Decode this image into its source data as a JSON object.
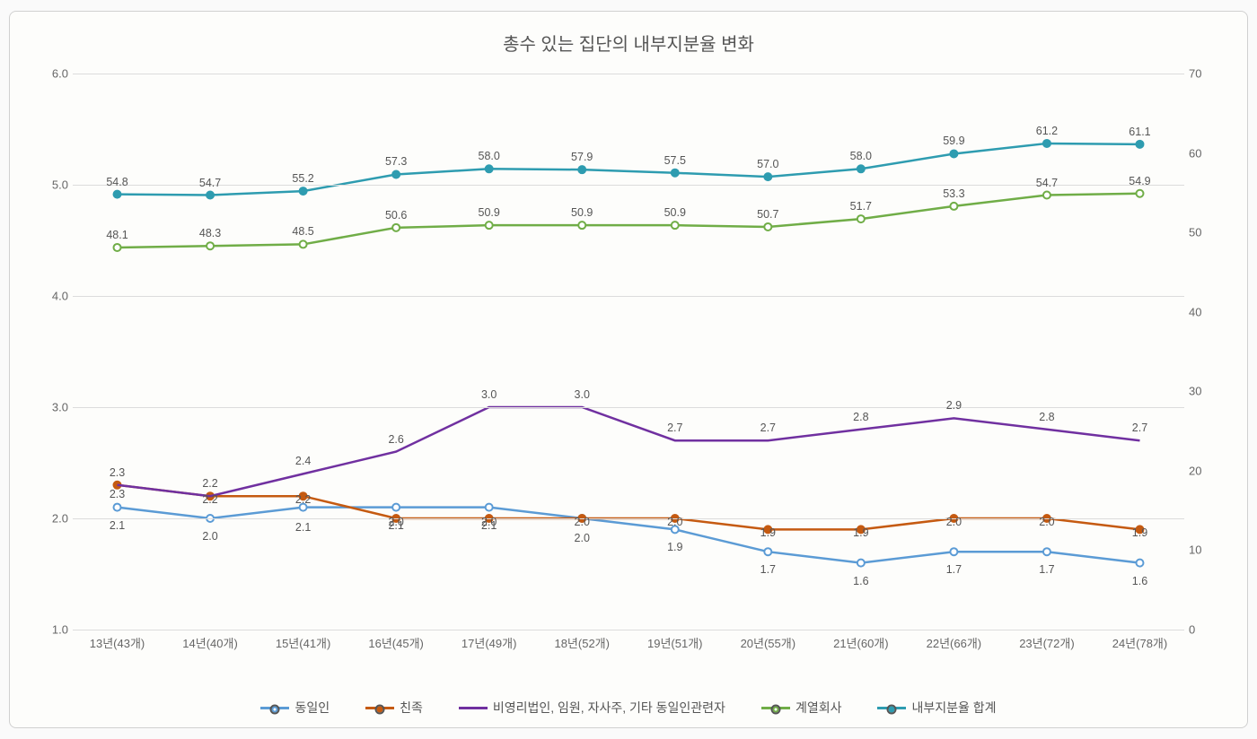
{
  "chart": {
    "title": "총수 있는 집단의 내부지분율 변화",
    "title_fontsize": 20,
    "background_color": "#fdfdfb",
    "grid_color": "#dcdcdc",
    "categories": [
      "13년(43개)",
      "14년(40개)",
      "15년(41개)",
      "16년(45개)",
      "17년(49개)",
      "18년(52개)",
      "19년(51개)",
      "20년(55개)",
      "21년(60개)",
      "22년(66개)",
      "23년(72개)",
      "24년(78개)"
    ],
    "left_axis": {
      "min": 1.0,
      "max": 6.0,
      "step": 1.0,
      "decimals": 1
    },
    "right_axis": {
      "min": 0,
      "max": 70,
      "step": 10,
      "decimals": 0
    },
    "label_fontsize": 12.5,
    "axis_fontsize": 13,
    "line_width": 2.5,
    "marker_radius": 4,
    "series": [
      {
        "key": "same_person",
        "label": "동일인",
        "axis": "left",
        "color": "#5b9bd5",
        "marker": true,
        "marker_fill": "#ffffff",
        "values": [
          2.1,
          2.0,
          2.1,
          2.1,
          2.1,
          2.0,
          1.9,
          1.7,
          1.6,
          1.7,
          1.7,
          1.6
        ],
        "label_offset": [
          20,
          20,
          22,
          20,
          20,
          22,
          20,
          20,
          20,
          20,
          20,
          20
        ]
      },
      {
        "key": "kin",
        "label": "친족",
        "axis": "left",
        "color": "#c55a11",
        "marker": true,
        "marker_fill": "#c55a11",
        "values": [
          2.3,
          2.2,
          2.2,
          2.0,
          2.0,
          2.0,
          2.0,
          1.9,
          1.9,
          2.0,
          2.0,
          1.9
        ],
        "label_offset": [
          10,
          4,
          4,
          4,
          4,
          4,
          4,
          4,
          4,
          4,
          4,
          4
        ]
      },
      {
        "key": "nonprofit_etc",
        "label": "비영리법인, 임원, 자사주, 기타 동일인관련자",
        "axis": "left",
        "color": "#7030a0",
        "marker": false,
        "values": [
          2.3,
          2.2,
          2.4,
          2.6,
          3.0,
          3.0,
          2.7,
          2.7,
          2.8,
          2.9,
          2.8,
          2.7
        ],
        "label_offset": [
          -14,
          -14,
          -14,
          -14,
          -14,
          -14,
          -14,
          -14,
          -14,
          -14,
          -14,
          -14
        ]
      },
      {
        "key": "affiliates",
        "label": "계열회사",
        "axis": "right",
        "color": "#70ad47",
        "marker": true,
        "marker_fill": "#ffffff",
        "values": [
          48.1,
          48.3,
          48.5,
          50.6,
          50.9,
          50.9,
          50.9,
          50.7,
          51.7,
          53.3,
          54.7,
          54.9
        ],
        "label_offset": [
          -14,
          -14,
          -14,
          -14,
          -14,
          -14,
          -14,
          -14,
          -14,
          -14,
          -14,
          -14
        ]
      },
      {
        "key": "total_internal",
        "label": "내부지분율 합계",
        "axis": "right",
        "color": "#2e9cb0",
        "marker": true,
        "marker_fill": "#2e9cb0",
        "values": [
          54.8,
          54.7,
          55.2,
          57.3,
          58.0,
          57.9,
          57.5,
          57.0,
          58.0,
          59.9,
          61.2,
          61.1
        ],
        "label_offset": [
          -14,
          -14,
          -14,
          -14,
          -14,
          -14,
          -14,
          -14,
          -14,
          -14,
          -14,
          -14
        ]
      }
    ]
  }
}
